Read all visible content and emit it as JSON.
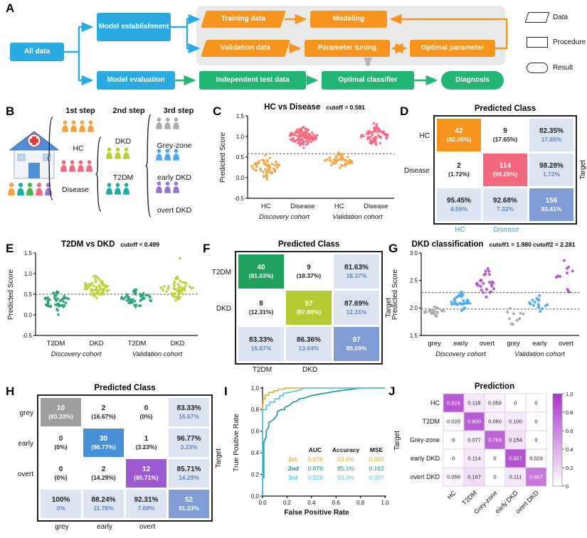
{
  "letters": {
    "A": "A",
    "B": "B",
    "C": "C",
    "D": "D",
    "E": "E",
    "F": "F",
    "G": "G",
    "H": "H",
    "I": "I",
    "J": "J"
  },
  "panelA": {
    "nodes": {
      "all_data": "All data",
      "model_establishment": "Model establishment",
      "training_data": "Training data",
      "modeling": "Modeling",
      "validation_data": "Validation data",
      "parameter_tuning": "Parameter tuning",
      "optimal_parameter": "Optimal parameter",
      "model_evaluation": "Model evaluation",
      "independent_test_data": "Independent test data",
      "optimal_classifier": "Optimal classifier",
      "diagnosis": "Diagnosis"
    },
    "legend": [
      {
        "shape": "parallelogram",
        "label": "Data"
      },
      {
        "shape": "rectangle",
        "label": "Procedure"
      },
      {
        "shape": "rounded",
        "label": "Result"
      }
    ],
    "colors": {
      "data_flow": "#29ABE2",
      "procedure": "#F7941D",
      "result": "#22B573"
    }
  },
  "panelB": {
    "steps": [
      "1st step",
      "2nd step",
      "3rd step"
    ],
    "groups": [
      {
        "id": "hc",
        "label": "HC",
        "color": "#F5A13D",
        "count": 4
      },
      {
        "id": "disease",
        "label": "Disease",
        "color": "#F4697E",
        "count": 4
      },
      {
        "id": "dkd",
        "label": "DKD",
        "color": "#BCCF35",
        "count": 3
      },
      {
        "id": "t2dm",
        "label": "T2DM",
        "color": "#1AAE9F",
        "count": 3
      },
      {
        "id": "grey",
        "label": "Grey-zone",
        "color": "#ABABAB",
        "count": 3
      },
      {
        "id": "early",
        "label": "early DKD",
        "color": "#4AA8F0",
        "count": 3
      },
      {
        "id": "overt",
        "label": "overt DKD",
        "color": "#9575CD",
        "count": 3
      }
    ],
    "clinic_people_colors": [
      "#F5A13D",
      "#1AAE9F",
      "#4CAF50",
      "#F4697E",
      "#9575CD"
    ]
  },
  "chart_data": [
    {
      "id": "C",
      "type": "scatter",
      "title": "HC vs Disease",
      "cutoff_label": "cutoff = 0.581",
      "cutoffs": [
        0.581
      ],
      "ylabel": "Predicted Score",
      "ylim": [
        -0.5,
        1.5
      ],
      "yticks": [
        "-0.5",
        "0.0",
        "0.5",
        "1.0",
        "1.5"
      ],
      "categories": [
        "HC",
        "Disease",
        "HC",
        "Disease"
      ],
      "cohorts": [
        "Discovery cohort",
        "Validation cohort"
      ],
      "series": [
        {
          "category": 0,
          "label": "HC discovery",
          "color": "#F5A13D",
          "n": 55,
          "mean": 0.28,
          "sd": 0.13
        },
        {
          "category": 1,
          "label": "Disease discovery",
          "color": "#F4697E",
          "n": 115,
          "mean": 1.0,
          "sd": 0.12
        },
        {
          "category": 2,
          "label": "HC validation",
          "color": "#F5A13D",
          "n": 44,
          "mean": 0.41,
          "sd": 0.09
        },
        {
          "category": 3,
          "label": "Disease validation",
          "color": "#F4697E",
          "n": 70,
          "mean": 1.0,
          "sd": 0.11
        }
      ]
    },
    {
      "id": "E",
      "type": "scatter",
      "title": "T2DM vs DKD",
      "cutoff_label": "cutoff = 0.499",
      "cutoffs": [
        0.499
      ],
      "ylabel": "Predicted Score",
      "ylim": [
        -0.5,
        1.5
      ],
      "yticks": [
        "-0.5",
        "0.0",
        "0.5",
        "1.0",
        "1.5"
      ],
      "categories": [
        "T2DM",
        "DKD",
        "T2DM",
        "DKD"
      ],
      "cohorts": [
        "Discovery cohort",
        "Validation cohort"
      ],
      "series": [
        {
          "category": 0,
          "label": "T2DM discovery",
          "color": "#21A179",
          "n": 50,
          "mean": 0.33,
          "sd": 0.11
        },
        {
          "category": 1,
          "label": "DKD discovery",
          "color": "#BCCF35",
          "n": 65,
          "mean": 0.66,
          "sd": 0.12
        },
        {
          "category": 2,
          "label": "T2DM validation",
          "color": "#21A179",
          "n": 45,
          "mean": 0.4,
          "sd": 0.1
        },
        {
          "category": 3,
          "label": "DKD validation",
          "color": "#BCCF35",
          "n": 55,
          "mean": 0.64,
          "sd": 0.12,
          "outliers": [
            1.37
          ]
        }
      ]
    },
    {
      "id": "G",
      "type": "scatter",
      "title": "DKD classification",
      "cutoff_label": "cutoff1 = 1.980 cutoff2 = 2.281",
      "cutoffs": [
        1.98,
        2.281
      ],
      "ylabel": "Predicted Score",
      "ylim": [
        1.5,
        3.0
      ],
      "yticks": [
        "1.5",
        "2.0",
        "2.5",
        "3.0"
      ],
      "categories": [
        "grey",
        "early",
        "overt",
        "grey",
        "early",
        "overt"
      ],
      "cohorts": [
        "Discovery cohort",
        "Validation cohort"
      ],
      "series": [
        {
          "category": 0,
          "label": "grey discovery",
          "color": "#A9A9A9",
          "n": 20,
          "mean": 1.92,
          "sd": 0.05
        },
        {
          "category": 1,
          "label": "early discovery",
          "color": "#4AA8F0",
          "n": 32,
          "mean": 2.1,
          "sd": 0.08
        },
        {
          "category": 2,
          "label": "overt discovery",
          "color": "#B14FC8",
          "n": 26,
          "mean": 2.45,
          "sd": 0.13
        },
        {
          "category": 3,
          "label": "grey validation",
          "color": "#A9A9A9",
          "n": 11,
          "mean": 1.88,
          "sd": 0.09
        },
        {
          "category": 4,
          "label": "early validation",
          "color": "#4AA8F0",
          "n": 16,
          "mean": 2.09,
          "sd": 0.07
        },
        {
          "category": 5,
          "label": "overt validation",
          "color": "#B14FC8",
          "n": 11,
          "mean": 2.55,
          "sd": 0.18
        }
      ]
    },
    {
      "id": "I",
      "type": "line",
      "xlabel": "False Positive Rate",
      "ylabel": "True Positive Rate",
      "xlim": [
        0,
        1
      ],
      "ylim": [
        0,
        1
      ],
      "xticks": [
        "0.0",
        "0.2",
        "0.4",
        "0.6",
        "0.8",
        "1.0"
      ],
      "yticks": [
        "0.0",
        "0.2",
        "0.4",
        "0.6",
        "0.8",
        "1.0"
      ],
      "legend_headers": [
        "AUC",
        "Accuracy",
        "MSE"
      ],
      "series": [
        {
          "name": "1st",
          "color": "#F5A623",
          "auc": "0.978",
          "accuracy": "93.4%",
          "mse": "0.090",
          "points": [
            [
              0,
              0
            ],
            [
              0,
              0.85
            ],
            [
              0.005,
              0.85
            ],
            [
              0.005,
              0.9
            ],
            [
              0.02,
              0.9
            ],
            [
              0.02,
              0.935
            ],
            [
              0.05,
              0.935
            ],
            [
              0.05,
              0.96
            ],
            [
              0.09,
              0.96
            ],
            [
              0.09,
              0.975
            ],
            [
              0.13,
              0.975
            ],
            [
              0.13,
              0.99
            ],
            [
              0.18,
              0.99
            ],
            [
              0.18,
              1
            ],
            [
              1,
              1
            ]
          ]
        },
        {
          "name": "2nd",
          "color": "#159987",
          "auc": "0.879",
          "accuracy": "85.1%",
          "mse": "0.162",
          "points": [
            [
              0,
              0
            ],
            [
              0,
              0.17
            ],
            [
              0.01,
              0.17
            ],
            [
              0.01,
              0.5
            ],
            [
              0.03,
              0.55
            ],
            [
              0.03,
              0.6
            ],
            [
              0.05,
              0.64
            ],
            [
              0.05,
              0.68
            ],
            [
              0.08,
              0.7
            ],
            [
              0.1,
              0.72
            ],
            [
              0.12,
              0.75
            ],
            [
              0.12,
              0.78
            ],
            [
              0.15,
              0.8
            ],
            [
              0.18,
              0.8
            ],
            [
              0.18,
              0.82
            ],
            [
              0.22,
              0.84
            ],
            [
              0.25,
              0.87
            ],
            [
              0.28,
              0.88
            ],
            [
              0.3,
              0.9
            ],
            [
              0.35,
              0.91
            ],
            [
              0.4,
              0.93
            ],
            [
              0.45,
              0.94
            ],
            [
              0.5,
              0.95
            ],
            [
              0.55,
              0.96
            ],
            [
              0.6,
              0.97
            ],
            [
              0.7,
              0.985
            ],
            [
              0.8,
              1
            ],
            [
              1,
              1
            ]
          ]
        },
        {
          "name": "3rd",
          "color": "#4FC3F7",
          "auc": "0.929",
          "accuracy": "93.3%",
          "mse": "0.097",
          "points": [
            [
              0,
              0
            ],
            [
              0,
              0.8
            ],
            [
              0.03,
              0.8
            ],
            [
              0.03,
              0.84
            ],
            [
              0.06,
              0.84
            ],
            [
              0.06,
              0.87
            ],
            [
              0.1,
              0.87
            ],
            [
              0.1,
              0.9
            ],
            [
              0.14,
              0.9
            ],
            [
              0.14,
              0.93
            ],
            [
              0.17,
              0.93
            ],
            [
              0.17,
              0.95
            ],
            [
              0.22,
              0.96
            ],
            [
              0.26,
              0.97
            ],
            [
              0.3,
              0.98
            ],
            [
              0.34,
              1
            ],
            [
              1,
              1
            ]
          ]
        }
      ]
    },
    {
      "id": "J",
      "type": "heatmap",
      "title": "Prediction",
      "target_label": "Target",
      "rows": [
        "HC",
        "T2DM",
        "Grey-zone",
        "early DKD",
        "overt DKD"
      ],
      "cols": [
        "HC",
        "T2DM",
        "Grey-zone",
        "early DKD",
        "overt DKD"
      ],
      "values": [
        [
          "0.824",
          "0.118",
          "0.059",
          "0",
          "0"
        ],
        [
          "0.020",
          "0.800",
          "0.080",
          "0.100",
          "0"
        ],
        [
          "0",
          "0.077",
          "0.769",
          "0.154",
          "0"
        ],
        [
          "0",
          "0.114",
          "0",
          "0.857",
          "0.029"
        ],
        [
          "0.056",
          "0.167",
          "0",
          "0.111",
          "0.667"
        ]
      ],
      "colorbar_ticks": [
        "1.0",
        "0.8",
        "0.6",
        "0.4",
        "0.2",
        "0"
      ],
      "cmap_low": "#FFFFFF",
      "cmap_high": "#A935C9"
    }
  ],
  "matrices": {
    "D": {
      "title": "Predicted Class",
      "target_label": "Target",
      "row_labels": [
        "HC",
        "Disease"
      ],
      "col_labels": [
        "HC",
        "Disease"
      ],
      "col_label_color": "#3AA2D9",
      "cells": [
        [
          {
            "t": "42",
            "b": "(82.35%)",
            "bg": "#F7941D",
            "tc": "#FFFFFF",
            "bc": "#FFFFFF"
          },
          {
            "t": "9",
            "b": "(17.65%)",
            "bg": "#FFFFFF",
            "tc": "#222222",
            "bc": "#222222"
          },
          {
            "t": "82.35%",
            "b": "17.65%",
            "bg": "#DCE4F2",
            "tc": "#222222",
            "bc": "#5B87C5"
          }
        ],
        [
          {
            "t": "2",
            "b": "(1.72%)",
            "bg": "#FFFFFF",
            "tc": "#222222",
            "bc": "#222222"
          },
          {
            "t": "114",
            "b": "(98.28%)",
            "bg": "#F4697E",
            "tc": "#FFFFFF",
            "bc": "#FFFFFF"
          },
          {
            "t": "98.28%",
            "b": "1.72%",
            "bg": "#DCE4F2",
            "tc": "#222222",
            "bc": "#5B87C5"
          }
        ],
        [
          {
            "t": "95.45%",
            "b": "4.55%",
            "bg": "#DCE4F2",
            "tc": "#222222",
            "bc": "#5B87C5"
          },
          {
            "t": "92.68%",
            "b": "7.32%",
            "bg": "#DCE4F2",
            "tc": "#222222",
            "bc": "#5B87C5"
          },
          {
            "t": "156",
            "b": "93.41%",
            "bg": "#7F9CD4",
            "tc": "#FFFFFF",
            "bc": "#FFFFFF"
          }
        ]
      ]
    },
    "F": {
      "title": "Predicted Class",
      "target_label": "Target",
      "row_labels": [
        "T2DM",
        "DKD"
      ],
      "col_labels": [
        "T2DM",
        "DKD"
      ],
      "cells": [
        [
          {
            "t": "40",
            "b": "(81.63%)",
            "bg": "#1FA05C",
            "tc": "#FFFFFF",
            "bc": "#FFFFFF"
          },
          {
            "t": "9",
            "b": "(18.37%)",
            "bg": "#FFFFFF",
            "tc": "#222222",
            "bc": "#222222"
          },
          {
            "t": "81.63%",
            "b": "18.37%",
            "bg": "#DCE4F2",
            "tc": "#222222",
            "bc": "#5B87C5"
          }
        ],
        [
          {
            "t": "8",
            "b": "(12.31%)",
            "bg": "#FFFFFF",
            "tc": "#222222",
            "bc": "#222222"
          },
          {
            "t": "57",
            "b": "(87.69%)",
            "bg": "#B5C933",
            "tc": "#FFFFFF",
            "bc": "#FFFFFF"
          },
          {
            "t": "87.69%",
            "b": "12.31%",
            "bg": "#DCE4F2",
            "tc": "#222222",
            "bc": "#5B87C5"
          }
        ],
        [
          {
            "t": "83.33%",
            "b": "16.67%",
            "bg": "#DCE4F2",
            "tc": "#222222",
            "bc": "#5B87C5"
          },
          {
            "t": "86.36%",
            "b": "13.64%",
            "bg": "#DCE4F2",
            "tc": "#222222",
            "bc": "#5B87C5"
          },
          {
            "t": "97",
            "b": "85.09%",
            "bg": "#7F9CD4",
            "tc": "#FFFFFF",
            "bc": "#FFFFFF"
          }
        ]
      ]
    },
    "H": {
      "title": "Predicted Class",
      "target_label": "Target",
      "row_labels": [
        "grey",
        "early",
        "overt"
      ],
      "col_labels": [
        "grey",
        "early",
        "overt"
      ],
      "cells": [
        [
          {
            "t": "10",
            "b": "(83.33%)",
            "bg": "#9E9E9E",
            "tc": "#FFFFFF",
            "bc": "#FFFFFF"
          },
          {
            "t": "2",
            "b": "(16.67%)",
            "bg": "#FFFFFF",
            "tc": "#222222",
            "bc": "#222222"
          },
          {
            "t": "0",
            "b": "(0%)",
            "bg": "#FFFFFF",
            "tc": "#222222",
            "bc": "#222222"
          },
          {
            "t": "83.33%",
            "b": "16.67%",
            "bg": "#DCE4F2",
            "tc": "#222222",
            "bc": "#5B87C5"
          }
        ],
        [
          {
            "t": "0",
            "b": "(0%)",
            "bg": "#FFFFFF",
            "tc": "#222222",
            "bc": "#222222"
          },
          {
            "t": "30",
            "b": "(96.77%)",
            "bg": "#4A90D9",
            "tc": "#FFFFFF",
            "bc": "#FFFFFF"
          },
          {
            "t": "1",
            "b": "(3.23%)",
            "bg": "#FFFFFF",
            "tc": "#222222",
            "bc": "#222222"
          },
          {
            "t": "96.77%",
            "b": "3.23%",
            "bg": "#DCE4F2",
            "tc": "#222222",
            "bc": "#5B87C5"
          }
        ],
        [
          {
            "t": "0",
            "b": "(0%)",
            "bg": "#FFFFFF",
            "tc": "#222222",
            "bc": "#222222"
          },
          {
            "t": "2",
            "b": "(14.29%)",
            "bg": "#FFFFFF",
            "tc": "#222222",
            "bc": "#222222"
          },
          {
            "t": "12",
            "b": "(85.71%)",
            "bg": "#9C59D1",
            "tc": "#FFFFFF",
            "bc": "#FFFFFF"
          },
          {
            "t": "85.71%",
            "b": "14.29%",
            "bg": "#DCE4F2",
            "tc": "#222222",
            "bc": "#5B87C5"
          }
        ],
        [
          {
            "t": "100%",
            "b": "0%",
            "bg": "#DCE4F2",
            "tc": "#222222",
            "bc": "#5B87C5"
          },
          {
            "t": "88.24%",
            "b": "11.76%",
            "bg": "#DCE4F2",
            "tc": "#222222",
            "bc": "#5B87C5"
          },
          {
            "t": "92.31%",
            "b": "7.68%",
            "bg": "#DCE4F2",
            "tc": "#222222",
            "bc": "#5B87C5"
          },
          {
            "t": "52",
            "b": "91.23%",
            "bg": "#7F9CD4",
            "tc": "#FFFFFF",
            "bc": "#FFFFFF"
          }
        ]
      ]
    }
  }
}
